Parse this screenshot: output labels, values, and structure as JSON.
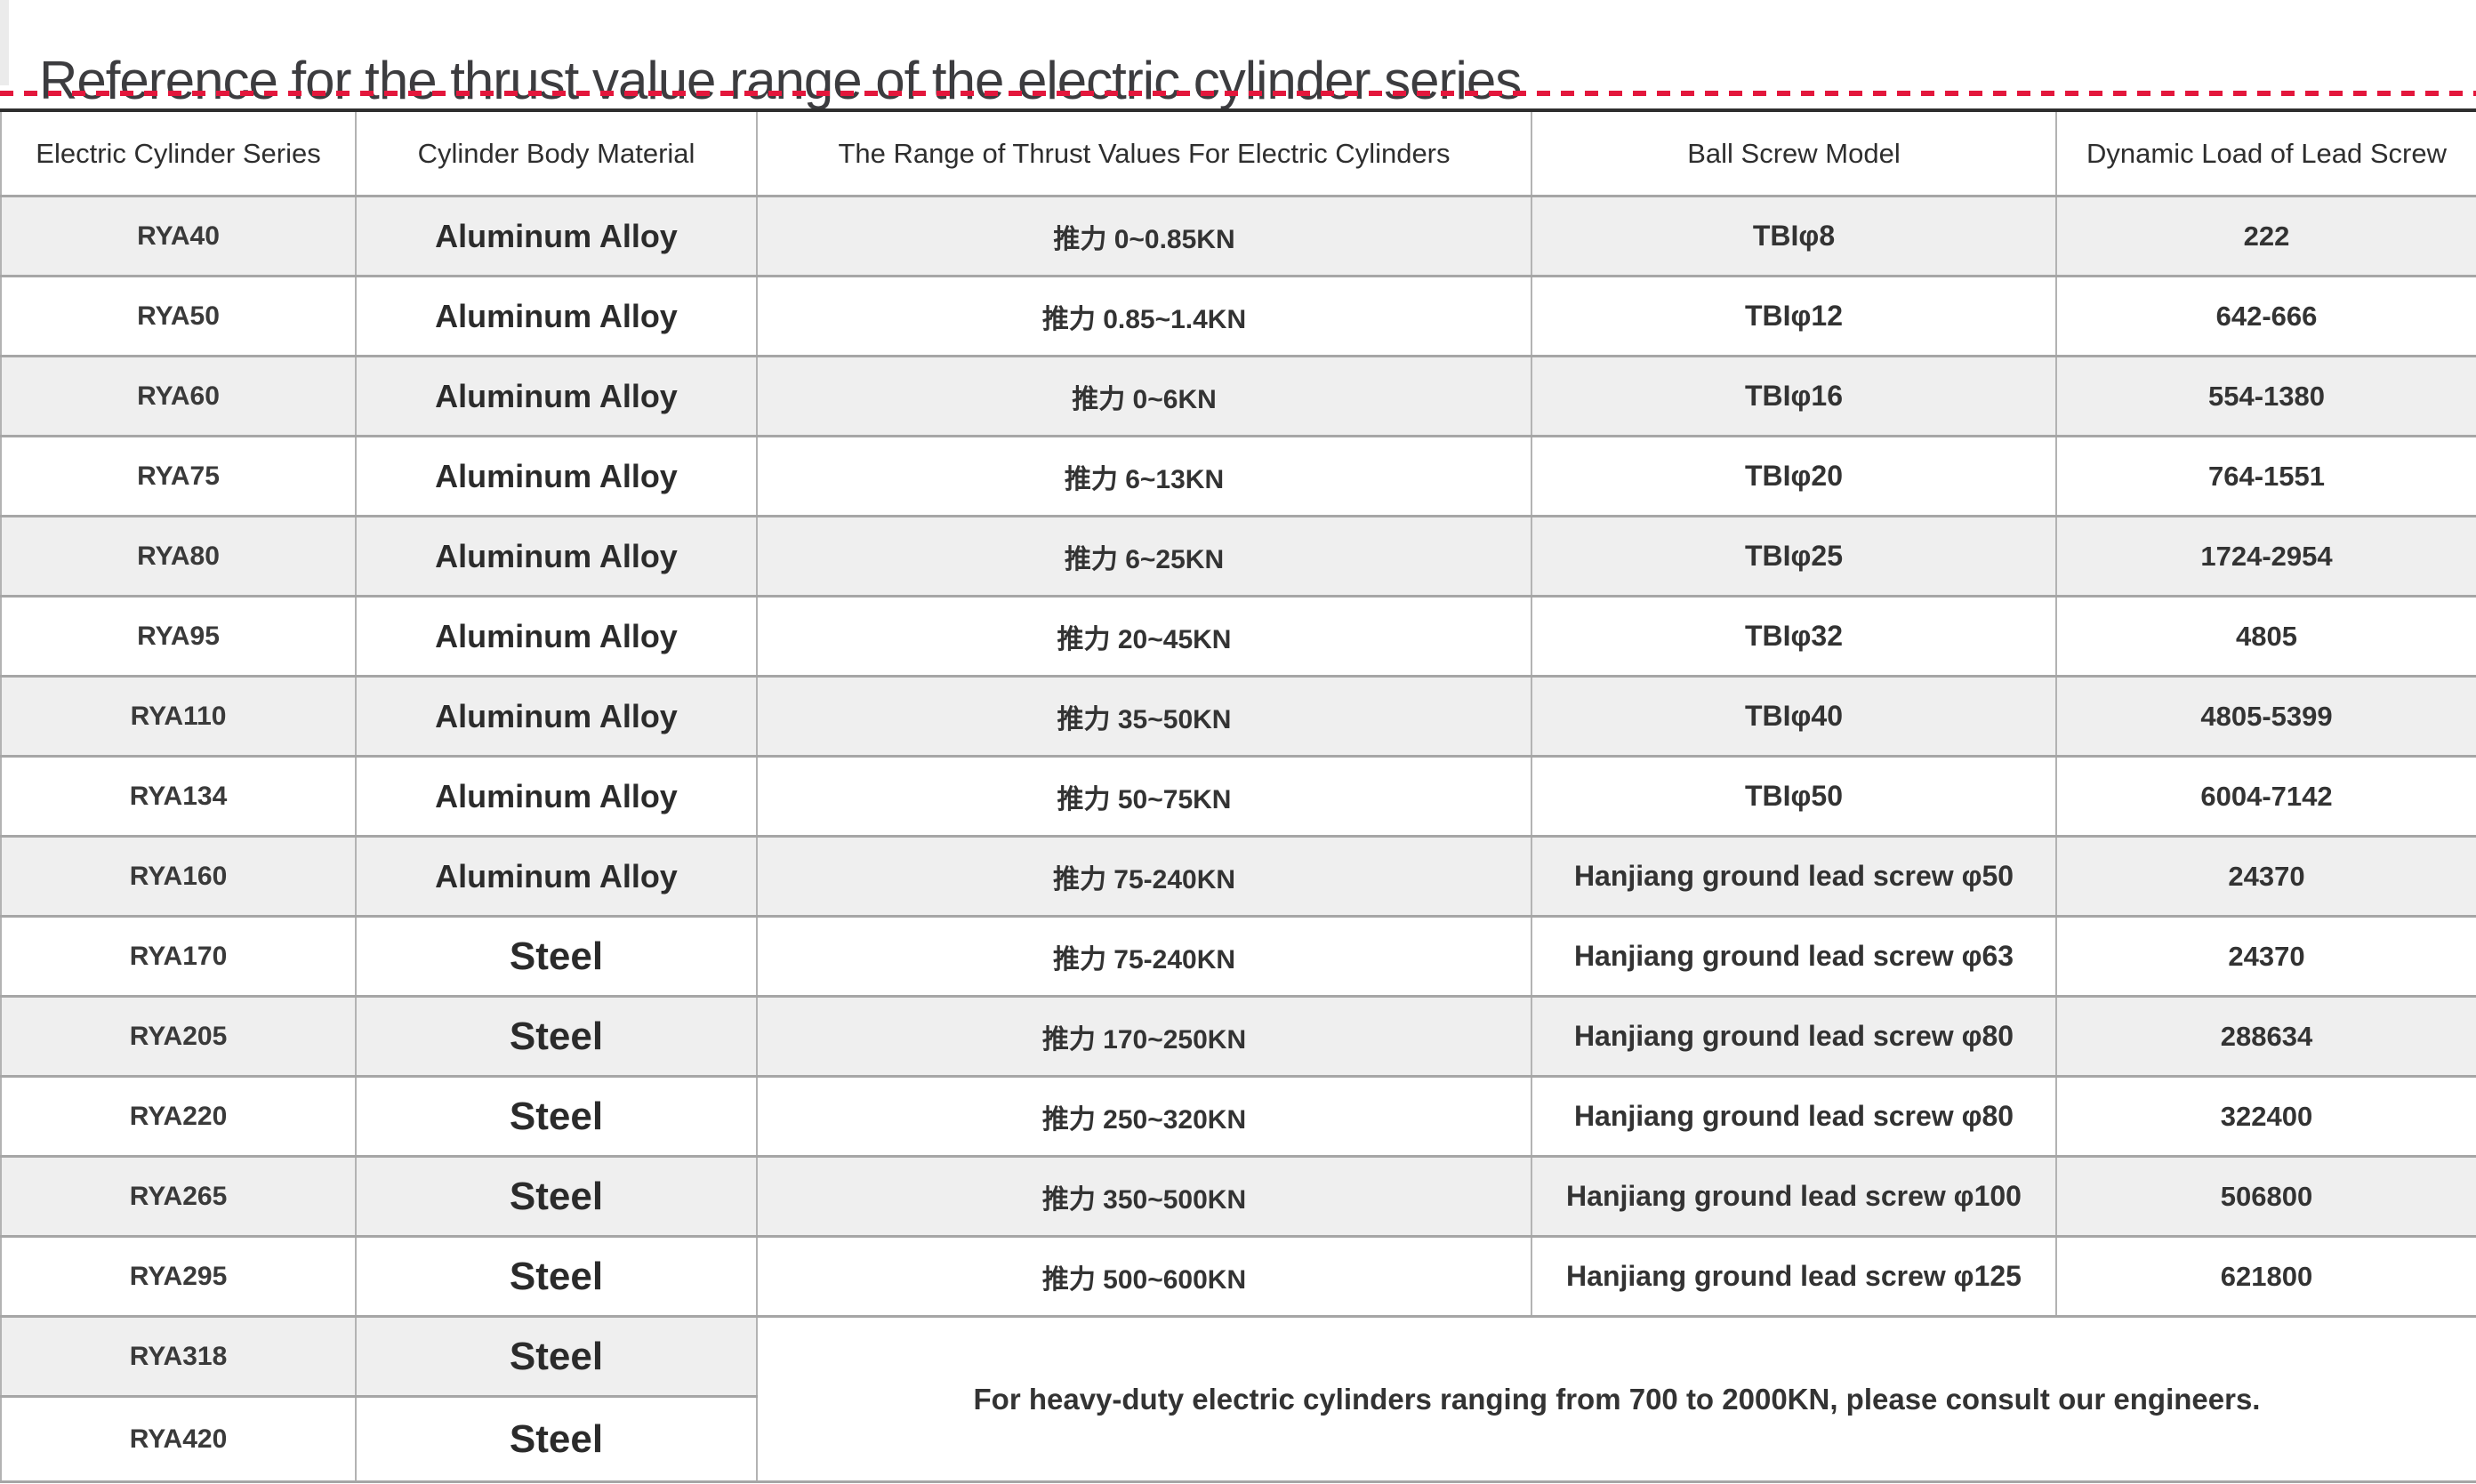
{
  "page_title": "Reference for the thrust value range of the electric cylinder series",
  "accent_color": "#e3173c",
  "table": {
    "headers": [
      "Electric Cylinder Series",
      "Cylinder Body Material",
      "The Range of Thrust Values For Electric Cylinders",
      "Ball Screw Model",
      "Dynamic Load of Lead Screw"
    ],
    "rows": [
      {
        "series": "RYA40",
        "material": "Aluminum Alloy",
        "thrust": "推力 0~0.85KN",
        "ball_screw": "TBIφ8",
        "dynamic_load": "222"
      },
      {
        "series": "RYA50",
        "material": "Aluminum Alloy",
        "thrust": "推力 0.85~1.4KN",
        "ball_screw": "TBIφ12",
        "dynamic_load": "642-666"
      },
      {
        "series": "RYA60",
        "material": "Aluminum Alloy",
        "thrust": "推力 0~6KN",
        "ball_screw": "TBIφ16",
        "dynamic_load": "554-1380"
      },
      {
        "series": "RYA75",
        "material": "Aluminum Alloy",
        "thrust": "推力 6~13KN",
        "ball_screw": "TBIφ20",
        "dynamic_load": "764-1551"
      },
      {
        "series": "RYA80",
        "material": "Aluminum Alloy",
        "thrust": "推力 6~25KN",
        "ball_screw": "TBIφ25",
        "dynamic_load": "1724-2954"
      },
      {
        "series": "RYA95",
        "material": "Aluminum Alloy",
        "thrust": "推力 20~45KN",
        "ball_screw": "TBIφ32",
        "dynamic_load": "4805"
      },
      {
        "series": "RYA110",
        "material": "Aluminum Alloy",
        "thrust": "推力 35~50KN",
        "ball_screw": "TBIφ40",
        "dynamic_load": "4805-5399"
      },
      {
        "series": "RYA134",
        "material": "Aluminum Alloy",
        "thrust": "推力 50~75KN",
        "ball_screw": "TBIφ50",
        "dynamic_load": "6004-7142"
      },
      {
        "series": "RYA160",
        "material": "Aluminum Alloy",
        "thrust": "推力 75-240KN",
        "ball_screw": "Hanjiang ground lead screw φ50",
        "dynamic_load": "24370"
      },
      {
        "series": "RYA170",
        "material": "Steel",
        "thrust": "推力 75-240KN",
        "ball_screw": "Hanjiang ground lead screw φ63",
        "dynamic_load": "24370"
      },
      {
        "series": "RYA205",
        "material": "Steel",
        "thrust": "推力 170~250KN",
        "ball_screw": "Hanjiang ground lead screw φ80",
        "dynamic_load": "288634"
      },
      {
        "series": "RYA220",
        "material": "Steel",
        "thrust": "推力 250~320KN",
        "ball_screw": "Hanjiang ground lead screw φ80",
        "dynamic_load": "322400"
      },
      {
        "series": "RYA265",
        "material": "Steel",
        "thrust": "推力 350~500KN",
        "ball_screw": "Hanjiang ground lead screw φ100",
        "dynamic_load": "506800"
      },
      {
        "series": "RYA295",
        "material": "Steel",
        "thrust": "推力 500~600KN",
        "ball_screw": "Hanjiang ground lead screw φ125",
        "dynamic_load": "621800"
      },
      {
        "series": "RYA318",
        "material": "Steel"
      },
      {
        "series": "RYA420",
        "material": "Steel"
      }
    ],
    "heavy_duty_note": "For heavy-duty electric cylinders ranging from 700 to 2000KN, please consult our engineers."
  }
}
